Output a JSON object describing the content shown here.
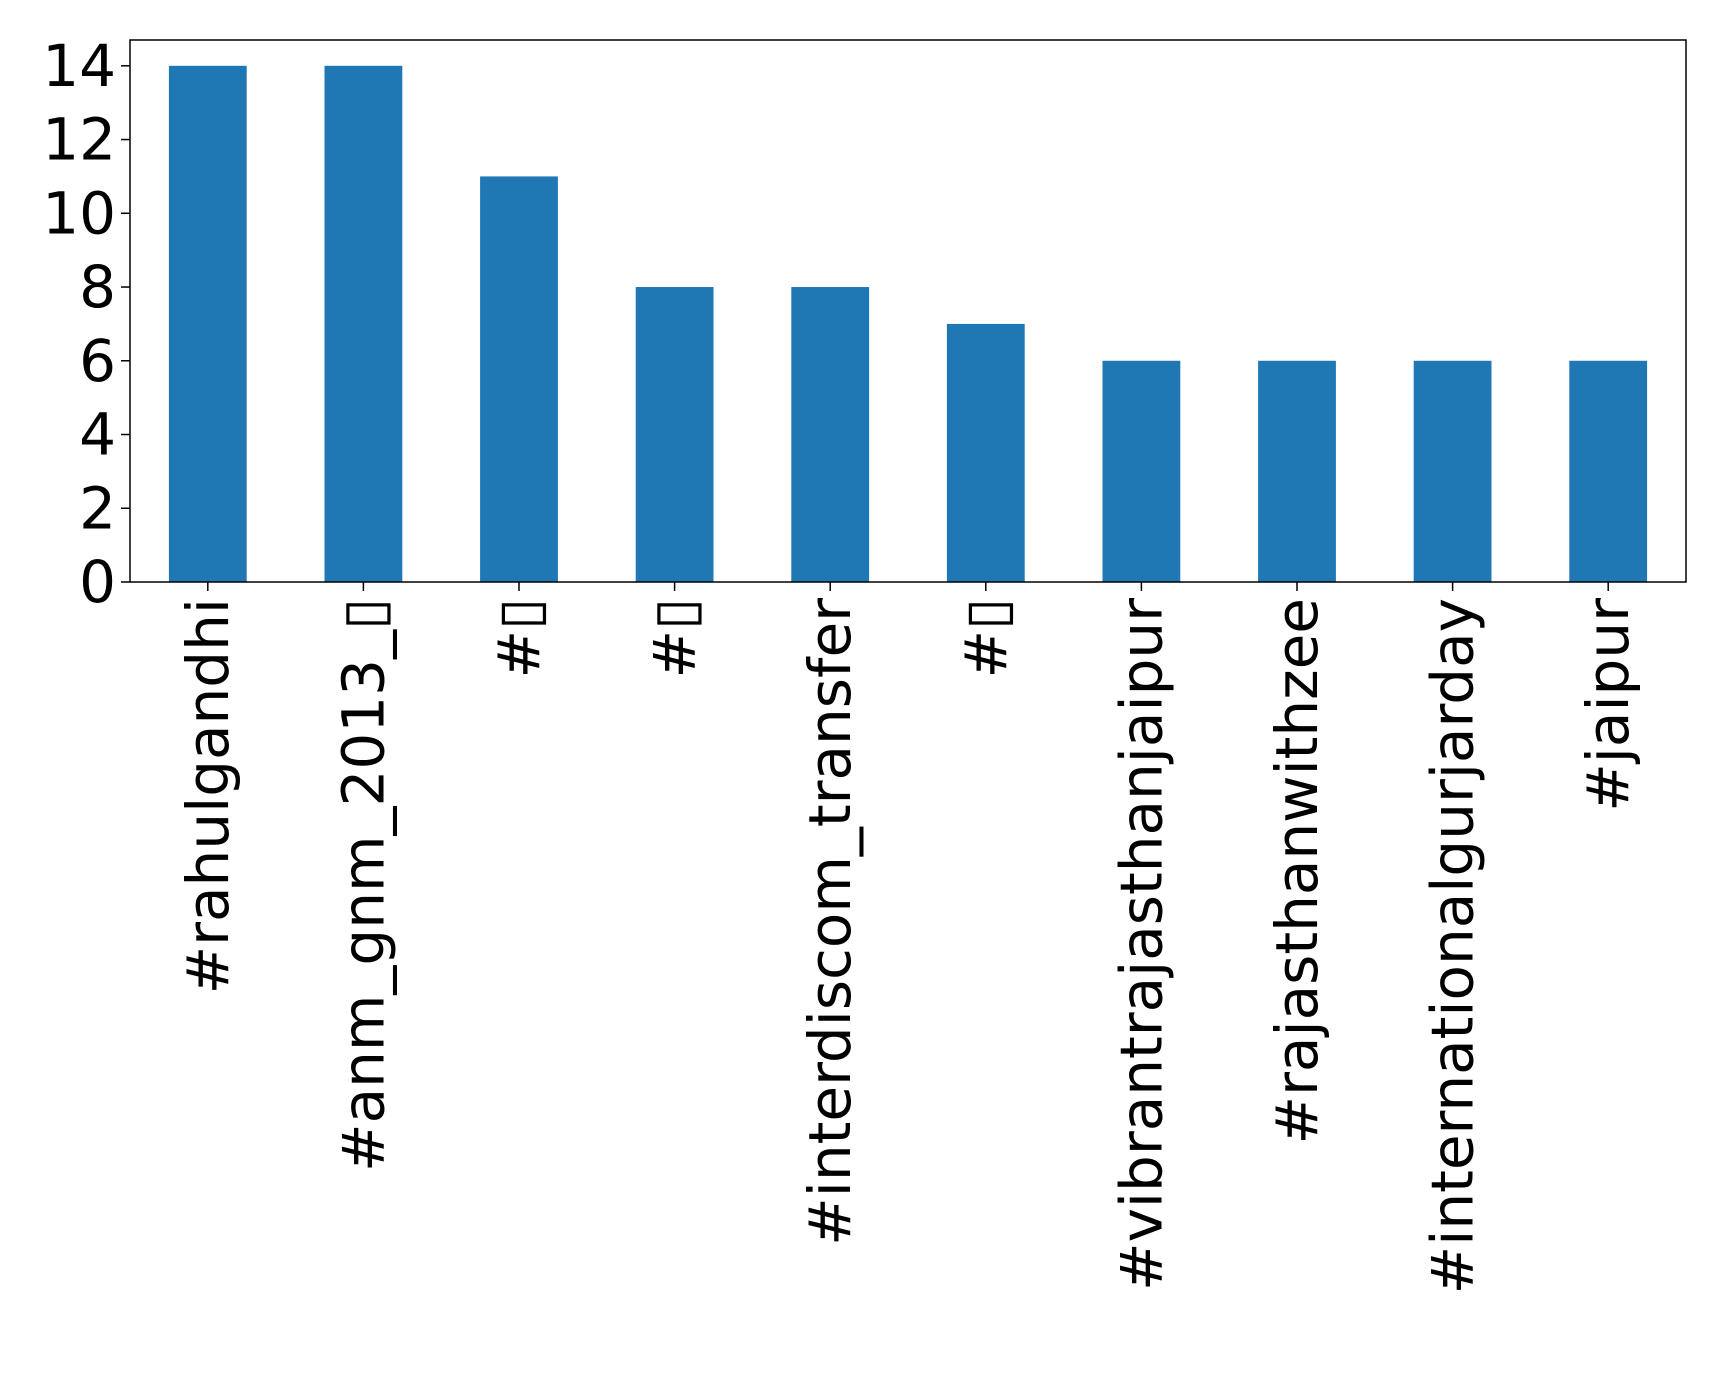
{
  "chart_data": {
    "type": "bar",
    "title": "",
    "xlabel": "",
    "ylabel": "",
    "categories": [
      "#rahulgandhi",
      "#anm_gnm_2013_▯",
      "#▯",
      "#▯",
      "#interdiscom_transfer",
      "#▯",
      "#vibrantrajasthanjaipur",
      "#rajasthanwithzee",
      "#internationalgurjarday",
      "#jaipur"
    ],
    "values": [
      14,
      14,
      11,
      8,
      8,
      7,
      6,
      6,
      6,
      6
    ],
    "ylim": [
      0,
      14.7
    ],
    "yticks": [
      0,
      2,
      4,
      6,
      8,
      10,
      12,
      14
    ],
    "bar_color": "#1f77b4",
    "grid": false,
    "legend": "none"
  }
}
